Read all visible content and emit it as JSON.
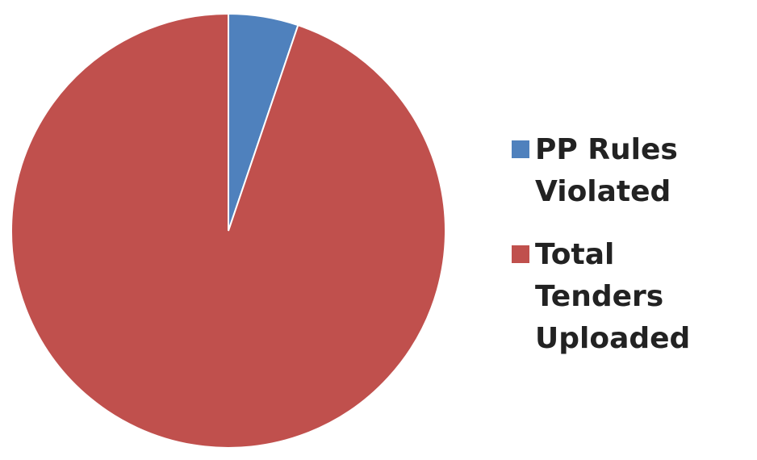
{
  "chart_data": {
    "type": "pie",
    "categories": [
      "PP Rules Violated",
      "Total Tenders Uploaded"
    ],
    "values": [
      5.2,
      94.8
    ],
    "colors": [
      "#4f81bd",
      "#c0504d"
    ],
    "start_angle_deg": 0,
    "direction": "clockwise",
    "legend_position": "right"
  },
  "legend": {
    "items": [
      {
        "label": "PP Rules Violated",
        "color": "#4f81bd"
      },
      {
        "label": "Total Tenders Uploaded",
        "color": "#c0504d"
      }
    ]
  }
}
